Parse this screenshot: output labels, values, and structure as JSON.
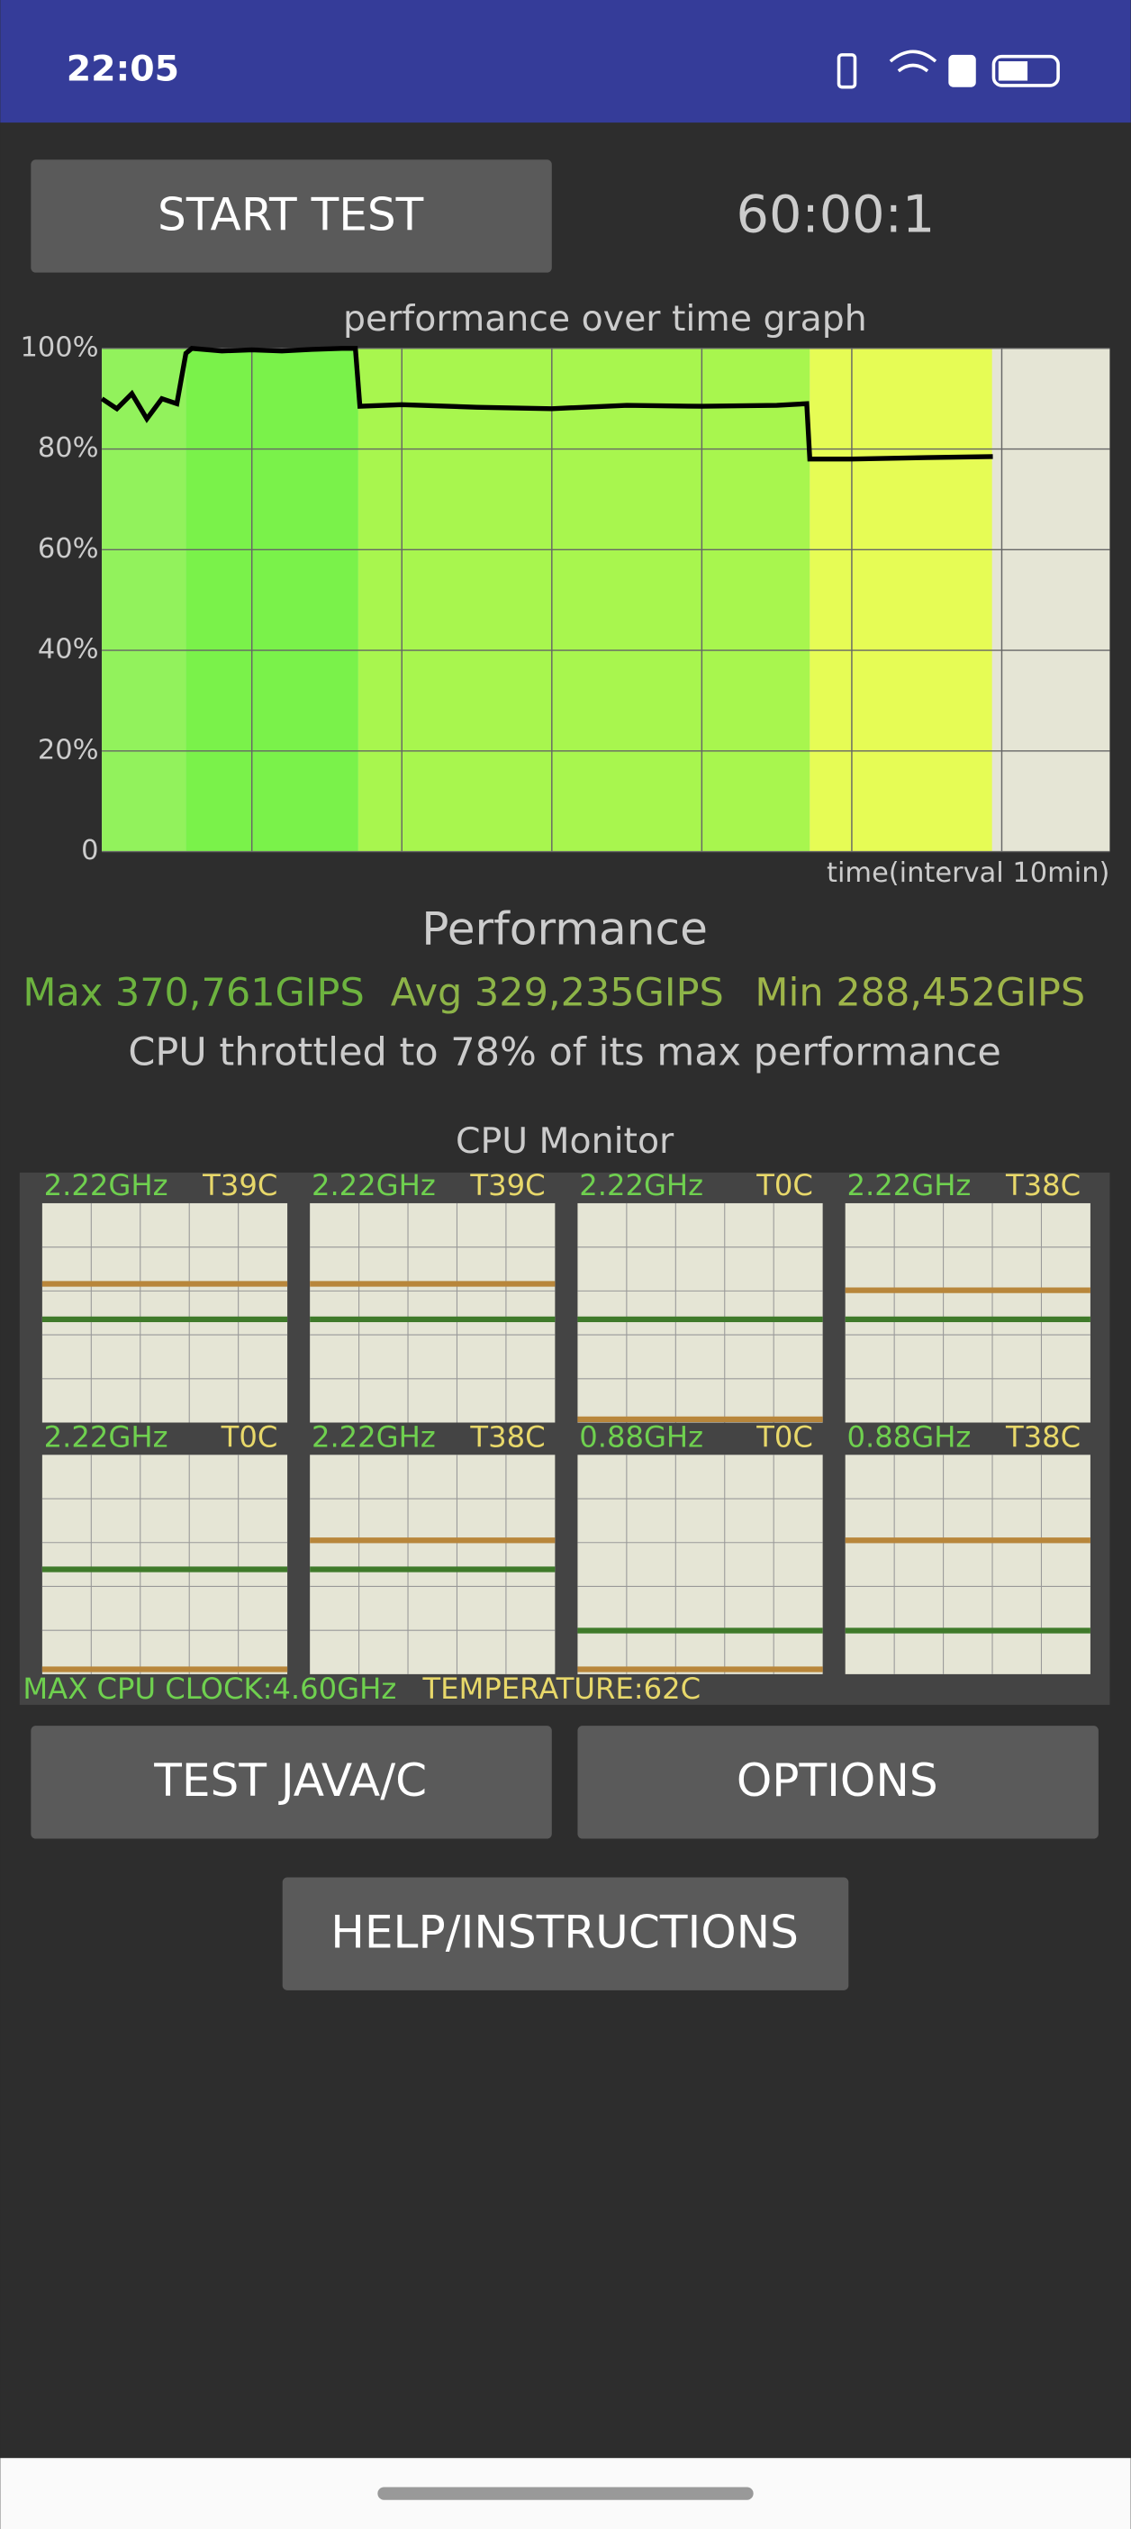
{
  "status_bar": {
    "time": "22:05"
  },
  "buttons": {
    "start": "START TEST",
    "test": "TEST JAVA/C",
    "options": "OPTIONS",
    "help": "HELP/INSTRUCTIONS"
  },
  "timer": "60:00:1",
  "chart_data": {
    "type": "line",
    "title": "performance over time graph",
    "x_label": "time(interval 10min)",
    "x": [
      0,
      1,
      2,
      3,
      4,
      5,
      5.6,
      6,
      8,
      10,
      12,
      14,
      16,
      16.9,
      17.2,
      20,
      25,
      30,
      35,
      40,
      45,
      47,
      47.2,
      50,
      55,
      59.4
    ],
    "values": [
      90,
      88,
      91,
      86,
      90,
      89,
      99,
      100,
      99.5,
      99.7,
      99.5,
      99.8,
      100,
      100,
      88.5,
      88.8,
      88.3,
      88,
      88.7,
      88.5,
      88.7,
      89,
      78,
      78,
      78.3,
      78.5
    ],
    "color": "#000000",
    "xlim": [
      0,
      67.2
    ],
    "xticks": [
      10,
      20,
      30,
      40,
      50,
      60
    ],
    "ylim": [
      0,
      100
    ],
    "yticks": [
      0,
      {
        "value": 20,
        "label": "20%"
      },
      {
        "value": 40,
        "label": "40%"
      },
      {
        "value": 60,
        "label": "60%"
      },
      {
        "value": 80,
        "label": "80%"
      },
      {
        "value": 100,
        "label": "100%"
      }
    ],
    "grid": true
  },
  "performance": {
    "heading": "Performance",
    "max": "Max 370,761GIPS",
    "avg": "Avg 329,235GIPS",
    "min": "Min 288,452GIPS",
    "throttle": "CPU throttled to 78% of its max performance"
  },
  "cpu_monitor": {
    "title": "CPU Monitor",
    "cores": [
      {
        "freq": "2.22GHz",
        "temp": "T39C"
      },
      {
        "freq": "2.22GHz",
        "temp": "T39C"
      },
      {
        "freq": "2.22GHz",
        "temp": "T0C"
      },
      {
        "freq": "2.22GHz",
        "temp": "T38C"
      },
      {
        "freq": "2.22GHz",
        "temp": "T0C"
      },
      {
        "freq": "2.22GHz",
        "temp": "T38C"
      },
      {
        "freq": "0.88GHz",
        "temp": "T0C"
      },
      {
        "freq": "0.88GHz",
        "temp": "T38C"
      }
    ],
    "max_clock": "MAX CPU CLOCK:4.60GHz",
    "temperature": "TEMPERATURE:62C"
  }
}
